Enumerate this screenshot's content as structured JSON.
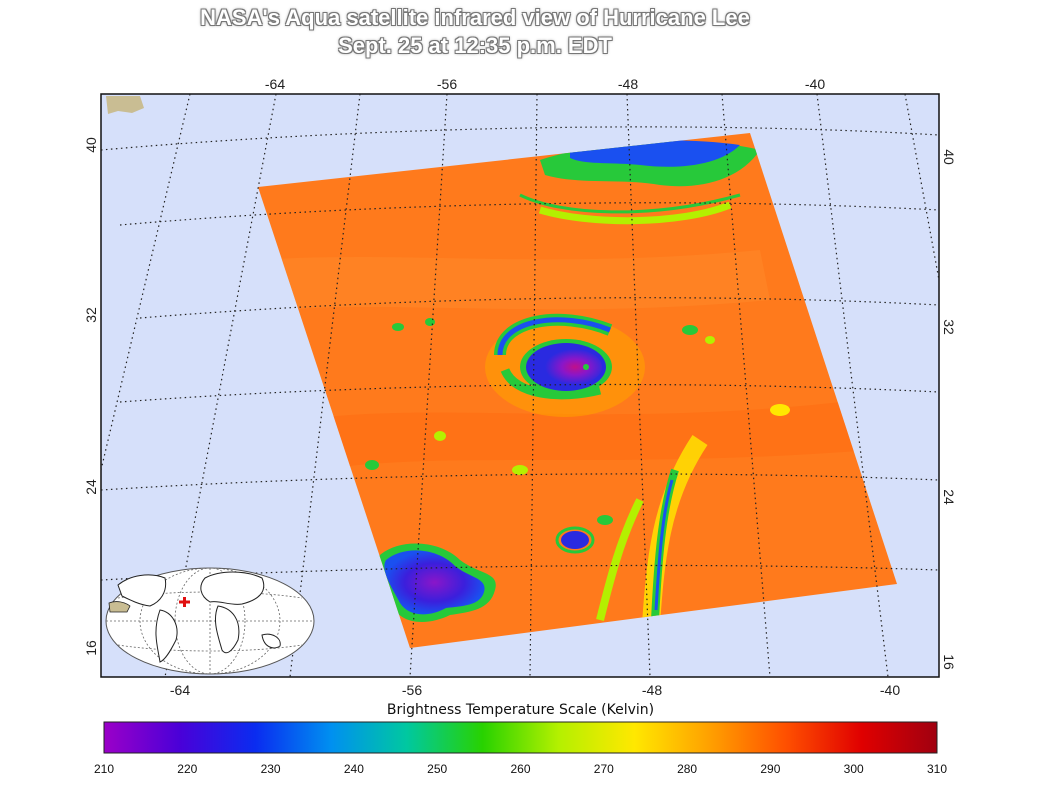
{
  "title": {
    "line1": "NASA's Aqua satellite infrared view of Hurricane Lee",
    "line2": "Sept. 25 at 12:35 p.m. EDT"
  },
  "map": {
    "top_lon_labels": [
      "-64",
      "-56",
      "-48",
      "-40"
    ],
    "bottom_lon_labels": [
      "-64",
      "-56",
      "-48",
      "-40"
    ],
    "left_lat_labels": [
      "40",
      "32",
      "24",
      "16"
    ],
    "right_lat_labels": [
      "40",
      "32",
      "24",
      "16"
    ],
    "colors": {
      "ocean": "#d6e0fa",
      "land": "#c9bd93",
      "warm_scene": "#ff7a1c",
      "cloud_cold": "#2a2ae0",
      "cloud_coldest": "#8a16c9",
      "cloud_edge": "#27c93a"
    }
  },
  "colorbar": {
    "title": "Brightness Temperature Scale (Kelvin)",
    "ticks": [
      "210",
      "220",
      "230",
      "240",
      "250",
      "260",
      "270",
      "280",
      "290",
      "300",
      "310"
    ],
    "stops": [
      "#9b00c8",
      "#4a00d8",
      "#0a2cf0",
      "#0090f0",
      "#00c8a0",
      "#28d200",
      "#b4f000",
      "#ffe800",
      "#ffa000",
      "#ff5000",
      "#e00000",
      "#a00010"
    ]
  }
}
